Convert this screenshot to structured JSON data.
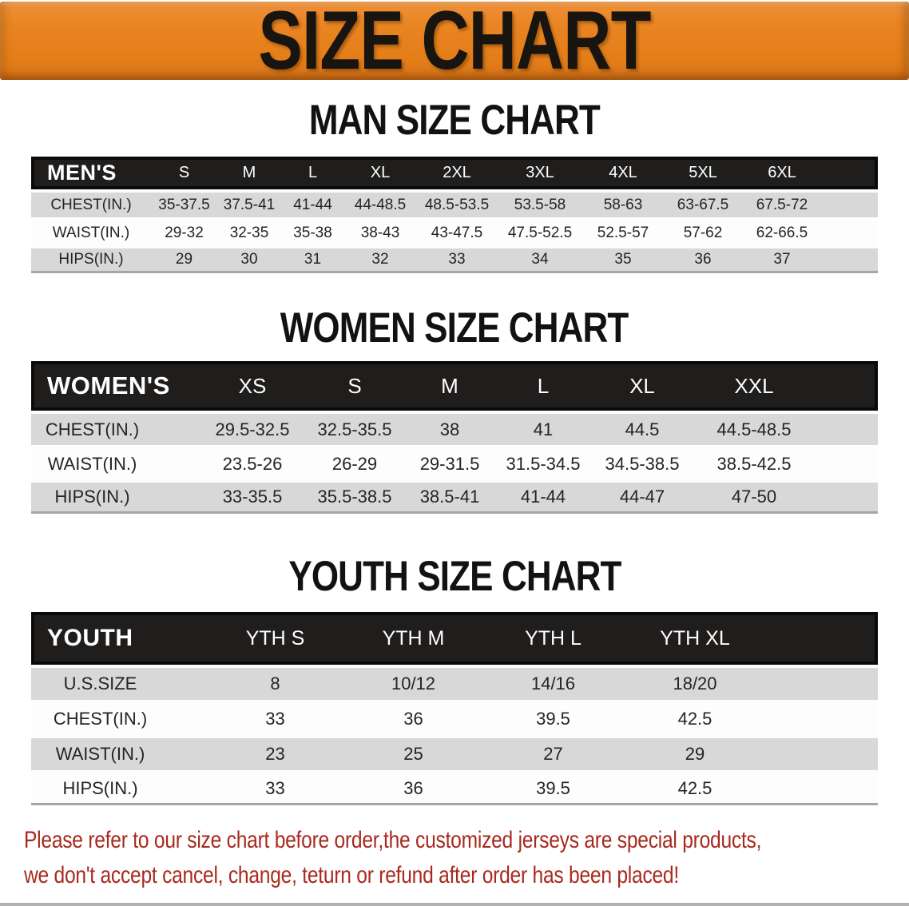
{
  "banner": {
    "title": "SIZE CHART",
    "bg_color": "#e8821d",
    "text_color": "#181410"
  },
  "sections": {
    "men": {
      "title": "MAN SIZE CHART",
      "table": {
        "label": "MEN'S",
        "columns": [
          "S",
          "M",
          "L",
          "XL",
          "2XL",
          "3XL",
          "4XL",
          "5XL",
          "6XL"
        ],
        "rows": [
          {
            "label": "CHEST(IN.)",
            "values": [
              "35-37.5",
              "37.5-41",
              "41-44",
              "44-48.5",
              "48.5-53.5",
              "53.5-58",
              "58-63",
              "63-67.5",
              "67.5-72"
            ]
          },
          {
            "label": "WAIST(IN.)",
            "values": [
              "29-32",
              "32-35",
              "35-38",
              "38-43",
              "43-47.5",
              "47.5-52.5",
              "52.5-57",
              "57-62",
              "62-66.5"
            ]
          },
          {
            "label": "HIPS(IN.)",
            "values": [
              "29",
              "30",
              "31",
              "32",
              "33",
              "34",
              "35",
              "36",
              "37"
            ]
          }
        ]
      }
    },
    "women": {
      "title": "WOMEN SIZE CHART",
      "table": {
        "label": "WOMEN'S",
        "columns": [
          "XS",
          "S",
          "M",
          "L",
          "XL",
          "XXL"
        ],
        "rows": [
          {
            "label": "CHEST(IN.)",
            "values": [
              "29.5-32.5",
              "32.5-35.5",
              "38",
              "41",
              "44.5",
              "44.5-48.5"
            ]
          },
          {
            "label": "WAIST(IN.)",
            "values": [
              "23.5-26",
              "26-29",
              "29-31.5",
              "31.5-34.5",
              "34.5-38.5",
              "38.5-42.5"
            ]
          },
          {
            "label": "HIPS(IN.)",
            "values": [
              "33-35.5",
              "35.5-38.5",
              "38.5-41",
              "41-44",
              "44-47",
              "47-50"
            ]
          }
        ]
      }
    },
    "youth": {
      "title": "YOUTH SIZE CHART",
      "table": {
        "label": "YOUTH",
        "columns": [
          "YTH S",
          "YTH M",
          "YTH L",
          "YTH XL"
        ],
        "rows": [
          {
            "label": "U.S.SIZE",
            "values": [
              "8",
              "10/12",
              "14/16",
              "18/20"
            ]
          },
          {
            "label": "CHEST(IN.)",
            "values": [
              "33",
              "36",
              "39.5",
              "42.5"
            ]
          },
          {
            "label": "WAIST(IN.)",
            "values": [
              "23",
              "25",
              "27",
              "29"
            ]
          },
          {
            "label": "HIPS(IN.)",
            "values": [
              "33",
              "36",
              "39.5",
              "42.5"
            ]
          }
        ]
      }
    }
  },
  "styles": {
    "header_bar_color": "#1d1b1a",
    "row_stripe_color": "#d8d8d8",
    "footer_text_color": "#a8291e"
  },
  "footer": {
    "lines": [
      "Please refer to our size chart before order,the customized jerseys are special products,",
      "we don't accept cancel, change, teturn or refund after order has been placed!"
    ]
  }
}
